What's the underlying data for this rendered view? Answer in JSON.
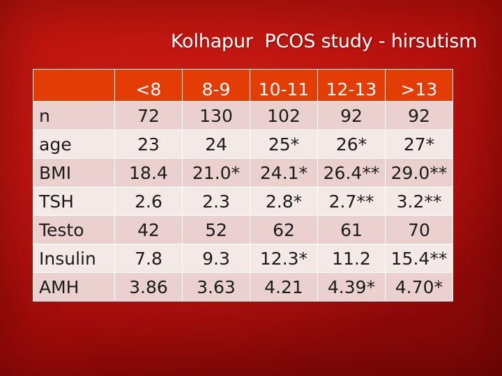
{
  "title": "Kolhapur  PCOS study - hirsutism",
  "table": {
    "columns": [
      "<8",
      "8-9",
      "10-11",
      "12-13",
      ">13"
    ],
    "rows": [
      {
        "label": "n",
        "values": [
          "72",
          "130",
          "102",
          "92",
          "92"
        ]
      },
      {
        "label": "age",
        "values": [
          "23",
          "24",
          "25*",
          "26*",
          "27*"
        ]
      },
      {
        "label": "BMI",
        "values": [
          "18.4",
          "21.0*",
          "24.1*",
          "26.4**",
          "29.0**"
        ]
      },
      {
        "label": "TSH",
        "values": [
          "2.6",
          "2.3",
          "2.8*",
          "2.7**",
          "3.2**"
        ]
      },
      {
        "label": "Testo",
        "values": [
          "42",
          "52",
          "62",
          "61",
          "70"
        ]
      },
      {
        "label": "Insulin",
        "values": [
          "7.8",
          "9.3",
          "12.3*",
          "11.2",
          "15.4**"
        ]
      },
      {
        "label": "AMH",
        "values": [
          "3.86",
          "3.63",
          "4.21",
          "4.39*",
          "4.70*"
        ]
      }
    ]
  },
  "colors": {
    "background": "#b10f0b",
    "header_fill": "#e33d05",
    "row_fill_a": "#ead0cf",
    "row_fill_b": "#f5e9e8",
    "header_text": "#ffffff",
    "body_text": "#1a1a1a"
  }
}
